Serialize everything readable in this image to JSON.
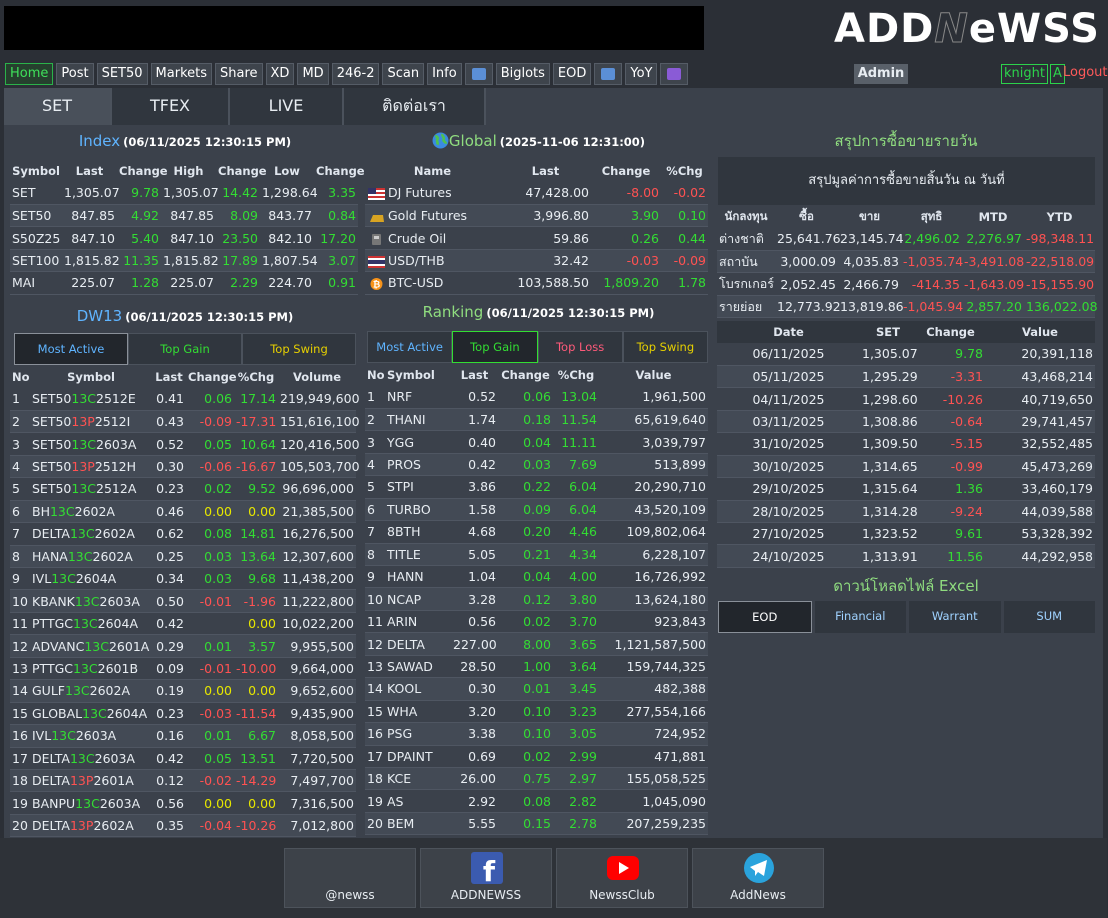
{
  "header": {
    "logo": [
      "ADD",
      "N",
      "eWSS"
    ],
    "nav": [
      "Home",
      "Post",
      "SET50",
      "Markets",
      "Share",
      "XD",
      "MD",
      "246-2",
      "Scan",
      "Info",
      "Biglots",
      "EOD",
      "YoY"
    ],
    "admin": "Admin",
    "user": "knight",
    "user_flag": "A",
    "logout": "Logout"
  },
  "tabs": [
    "SET",
    "TFEX",
    "LIVE",
    "ติดต่อเรา"
  ],
  "index": {
    "title": "Index",
    "time": "(06/11/2025 12:30:15 PM)",
    "columns": [
      "Symbol",
      "Last",
      "Change",
      "High",
      "Change",
      "Low",
      "Change"
    ],
    "rows": [
      [
        "SET",
        "1,305.07",
        "9.78",
        "1,305.07",
        "14.42",
        "1,298.64",
        "3.35"
      ],
      [
        "SET50",
        "847.85",
        "4.92",
        "847.85",
        "8.09",
        "843.77",
        "0.84"
      ],
      [
        "S50Z25",
        "847.10",
        "5.40",
        "847.10",
        "23.50",
        "842.10",
        "17.20"
      ],
      [
        "SET100",
        "1,815.82",
        "11.35",
        "1,815.82",
        "17.89",
        "1,807.54",
        "3.07"
      ],
      [
        "MAI",
        "225.07",
        "1.28",
        "225.07",
        "2.29",
        "224.70",
        "0.91"
      ]
    ]
  },
  "global": {
    "title": "Global",
    "time": "(2025-11-06 12:31:00)",
    "columns": [
      "Name",
      "Last",
      "Change",
      "%Chg"
    ],
    "rows": [
      [
        "DJ Futures",
        "47,428.00",
        "-8.00",
        "-0.02"
      ],
      [
        "Gold Futures",
        "3,996.80",
        "3.90",
        "0.10"
      ],
      [
        "Crude Oil",
        "59.86",
        "0.26",
        "0.44"
      ],
      [
        "USD/THB",
        "32.42",
        "-0.03",
        "-0.09"
      ],
      [
        "BTC-USD",
        "103,588.50",
        "1,809.20",
        "1.78"
      ]
    ]
  },
  "dw13": {
    "title": "DW13",
    "time": "(06/11/2025 12:30:15 PM)",
    "tabs": [
      "Most Active",
      "Top Gain",
      "Top Swing"
    ],
    "columns": [
      "No",
      "Symbol",
      "Last",
      "Change",
      "%Chg",
      "Volume"
    ],
    "rows": [
      [
        "1",
        [
          "SET50",
          "13C",
          "2512E"
        ],
        "0.41",
        "0.06",
        "17.14",
        "219,949,600"
      ],
      [
        "2",
        [
          "SET50",
          "13P",
          "2512I"
        ],
        "0.43",
        "-0.09",
        "-17.31",
        "151,616,100"
      ],
      [
        "3",
        [
          "SET50",
          "13C",
          "2603A"
        ],
        "0.52",
        "0.05",
        "10.64",
        "120,416,500"
      ],
      [
        "4",
        [
          "SET50",
          "13P",
          "2512H"
        ],
        "0.30",
        "-0.06",
        "-16.67",
        "105,503,700"
      ],
      [
        "5",
        [
          "SET50",
          "13C",
          "2512A"
        ],
        "0.23",
        "0.02",
        "9.52",
        "96,696,000"
      ],
      [
        "6",
        [
          "BH",
          "13C",
          "2602A"
        ],
        "0.46",
        "0.00",
        "0.00",
        "21,385,500"
      ],
      [
        "7",
        [
          "DELTA",
          "13C",
          "2602A"
        ],
        "0.62",
        "0.08",
        "14.81",
        "16,276,500"
      ],
      [
        "8",
        [
          "HANA",
          "13C",
          "2602A"
        ],
        "0.25",
        "0.03",
        "13.64",
        "12,307,600"
      ],
      [
        "9",
        [
          "IVL",
          "13C",
          "2604A"
        ],
        "0.34",
        "0.03",
        "9.68",
        "11,438,200"
      ],
      [
        "10",
        [
          "KBANK",
          "13C",
          "2603A"
        ],
        "0.50",
        "-0.01",
        "-1.96",
        "11,222,800"
      ],
      [
        "11",
        [
          "PTTGC",
          "13C",
          "2604A"
        ],
        "0.42",
        null,
        "0.00",
        "10,022,200"
      ],
      [
        "12",
        [
          "ADVANC",
          "13C",
          "2601A"
        ],
        "0.29",
        "0.01",
        "3.57",
        "9,955,500"
      ],
      [
        "13",
        [
          "PTTGC",
          "13C",
          "2601B"
        ],
        "0.09",
        "-0.01",
        "-10.00",
        "9,664,000"
      ],
      [
        "14",
        [
          "GULF",
          "13C",
          "2602A"
        ],
        "0.19",
        "0.00",
        "0.00",
        "9,652,600"
      ],
      [
        "15",
        [
          "GLOBAL",
          "13C",
          "2604A"
        ],
        "0.23",
        "-0.03",
        "-11.54",
        "9,435,900"
      ],
      [
        "16",
        [
          "IVL",
          "13C",
          "2603A"
        ],
        "0.16",
        "0.01",
        "6.67",
        "8,058,500"
      ],
      [
        "17",
        [
          "DELTA",
          "13C",
          "2603A"
        ],
        "0.42",
        "0.05",
        "13.51",
        "7,720,500"
      ],
      [
        "18",
        [
          "DELTA",
          "13P",
          "2601A"
        ],
        "0.12",
        "-0.02",
        "-14.29",
        "7,497,700"
      ],
      [
        "19",
        [
          "BANPU",
          "13C",
          "2603A"
        ],
        "0.56",
        "0.00",
        "0.00",
        "7,316,500"
      ],
      [
        "20",
        [
          "DELTA",
          "13P",
          "2602A"
        ],
        "0.35",
        "-0.04",
        "-10.26",
        "7,012,800"
      ]
    ]
  },
  "ranking": {
    "title": "Ranking",
    "time": "(06/11/2025 12:30:15 PM)",
    "tabs": [
      "Most Active",
      "Top Gain",
      "Top Loss",
      "Top Swing"
    ],
    "columns": [
      "No",
      "Symbol",
      "Last",
      "Change",
      "%Chg",
      "Value"
    ],
    "rows": [
      [
        "1",
        "NRF",
        "0.52",
        "0.06",
        "13.04",
        "1,961,500"
      ],
      [
        "2",
        "THANI",
        "1.74",
        "0.18",
        "11.54",
        "65,619,640"
      ],
      [
        "3",
        "YGG",
        "0.40",
        "0.04",
        "11.11",
        "3,039,797"
      ],
      [
        "4",
        "PROS",
        "0.42",
        "0.03",
        "7.69",
        "513,899"
      ],
      [
        "5",
        "STPI",
        "3.86",
        "0.22",
        "6.04",
        "20,290,710"
      ],
      [
        "6",
        "TURBO",
        "1.58",
        "0.09",
        "6.04",
        "43,520,109"
      ],
      [
        "7",
        "8BTH",
        "4.68",
        "0.20",
        "4.46",
        "109,802,064"
      ],
      [
        "8",
        "TITLE",
        "5.05",
        "0.21",
        "4.34",
        "6,228,107"
      ],
      [
        "9",
        "HANN",
        "1.04",
        "0.04",
        "4.00",
        "16,726,992"
      ],
      [
        "10",
        "NCAP",
        "3.28",
        "0.12",
        "3.80",
        "13,624,180"
      ],
      [
        "11",
        "ARIN",
        "0.56",
        "0.02",
        "3.70",
        "923,843"
      ],
      [
        "12",
        "DELTA",
        "227.00",
        "8.00",
        "3.65",
        "1,121,587,500"
      ],
      [
        "13",
        "SAWAD",
        "28.50",
        "1.00",
        "3.64",
        "159,744,325"
      ],
      [
        "14",
        "KOOL",
        "0.30",
        "0.01",
        "3.45",
        "482,388"
      ],
      [
        "15",
        "WHA",
        "3.20",
        "0.10",
        "3.23",
        "277,554,166"
      ],
      [
        "16",
        "PSG",
        "3.38",
        "0.10",
        "3.05",
        "724,952"
      ],
      [
        "17",
        "DPAINT",
        "0.69",
        "0.02",
        "2.99",
        "471,881"
      ],
      [
        "18",
        "KCE",
        "26.00",
        "0.75",
        "2.97",
        "155,058,525"
      ],
      [
        "19",
        "AS",
        "2.92",
        "0.08",
        "2.82",
        "1,045,090"
      ],
      [
        "20",
        "BEM",
        "5.55",
        "0.15",
        "2.78",
        "207,259,235"
      ]
    ]
  },
  "summary": {
    "title": "สรุปการซื้อขายรายวัน",
    "caption": "สรุปมูลค่าการซื้อขายสิ้นวัน ณ วันที่",
    "columns": [
      "นักลงทุน",
      "ซื้อ",
      "ขาย",
      "สุทธิ",
      "MTD",
      "YTD"
    ],
    "rows": [
      [
        "ต่างชาติ",
        "25,641.76",
        "23,145.74",
        "2,496.02",
        "2,276.97",
        "-98,348.11"
      ],
      [
        "สถาบัน",
        "3,000.09",
        "4,035.83",
        "-1,035.74",
        "-3,491.08",
        "-22,518.09"
      ],
      [
        "โบรกเกอร์",
        "2,052.45",
        "2,466.79",
        "-414.35",
        "-1,643.09",
        "-15,155.90"
      ],
      [
        "รายย่อย",
        "12,773.92",
        "13,819.86",
        "-1,045.94",
        "2,857.20",
        "136,022.08"
      ]
    ]
  },
  "daily": {
    "columns": [
      "Date",
      "SET",
      "Change",
      "Value"
    ],
    "rows": [
      [
        "06/11/2025",
        "1,305.07",
        "9.78",
        "20,391,118"
      ],
      [
        "05/11/2025",
        "1,295.29",
        "-3.31",
        "43,468,214"
      ],
      [
        "04/11/2025",
        "1,298.60",
        "-10.26",
        "40,719,650"
      ],
      [
        "03/11/2025",
        "1,308.86",
        "-0.64",
        "29,741,457"
      ],
      [
        "31/10/2025",
        "1,309.50",
        "-5.15",
        "32,552,485"
      ],
      [
        "30/10/2025",
        "1,314.65",
        "-0.99",
        "45,473,269"
      ],
      [
        "29/10/2025",
        "1,315.64",
        "1.36",
        "33,460,179"
      ],
      [
        "28/10/2025",
        "1,314.28",
        "-9.24",
        "44,039,588"
      ],
      [
        "27/10/2025",
        "1,323.52",
        "9.61",
        "53,328,392"
      ],
      [
        "24/10/2025",
        "1,313.91",
        "11.56",
        "44,292,958"
      ]
    ]
  },
  "download": {
    "title": "ดาวน์โหลดไฟล์ Excel",
    "buttons": [
      "EOD",
      "Financial",
      "Warrant",
      "SUM"
    ]
  },
  "footer": [
    "@newss",
    "ADDNEWSS",
    "NewssClub",
    "AddNews"
  ]
}
